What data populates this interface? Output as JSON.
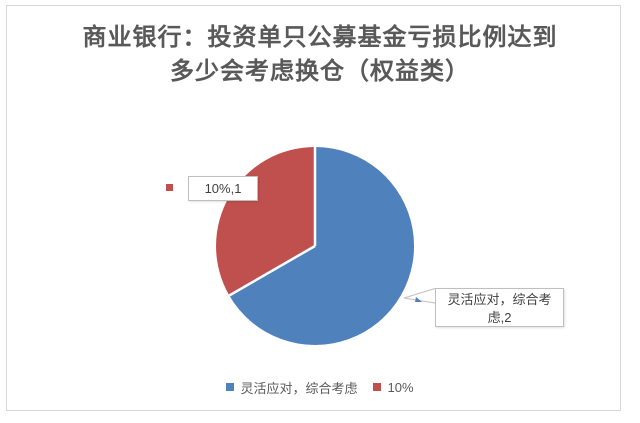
{
  "title": {
    "text": "商业银行：投资单只公募基金亏损比例达到多少会考虑换仓（权益类）",
    "lines": [
      "商业银行：投资单只公募基金亏损比例达到",
      "多少会考虑换仓（权益类）"
    ],
    "color": "#595959"
  },
  "chart_data": {
    "type": "pie",
    "title": "商业银行：投资单只公募基金亏损比例达到多少会考虑换仓（权益类）",
    "categories": [
      "灵活应对，综合考虑",
      "10%"
    ],
    "values": [
      2,
      1
    ],
    "percentages": [
      66.7,
      33.3
    ],
    "colors": [
      "#4F81BD",
      "#C0504D"
    ],
    "start_angle_deg": 0,
    "direction": "clockwise",
    "separator_color": "#ffffff",
    "legend_position": "bottom",
    "data_labels": [
      {
        "category": "灵活应对，综合考虑",
        "value": 2,
        "text": "灵活应对，综合考虑,2",
        "lines": [
          "灵活应对，综合考",
          "虑,2"
        ]
      },
      {
        "category": "10%",
        "value": 1,
        "text": "10%,1",
        "lines": [
          "10%,1"
        ]
      }
    ]
  },
  "legend": {
    "items": [
      {
        "label": "灵活应对，综合考虑",
        "color": "#4F81BD"
      },
      {
        "label": "10%",
        "color": "#C0504D"
      }
    ]
  }
}
